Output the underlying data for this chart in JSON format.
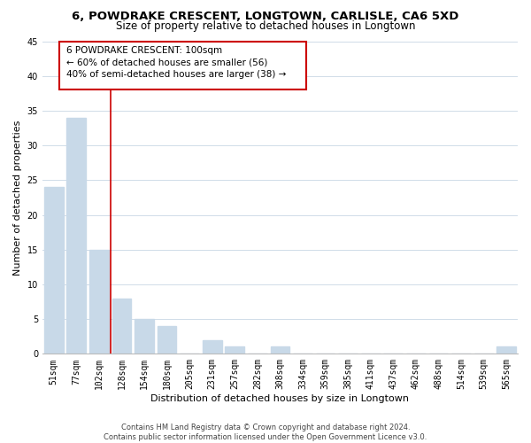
{
  "title": "6, POWDRAKE CRESCENT, LONGTOWN, CARLISLE, CA6 5XD",
  "subtitle": "Size of property relative to detached houses in Longtown",
  "xlabel": "Distribution of detached houses by size in Longtown",
  "ylabel": "Number of detached properties",
  "bar_labels": [
    "51sqm",
    "77sqm",
    "102sqm",
    "128sqm",
    "154sqm",
    "180sqm",
    "205sqm",
    "231sqm",
    "257sqm",
    "282sqm",
    "308sqm",
    "334sqm",
    "359sqm",
    "385sqm",
    "411sqm",
    "437sqm",
    "462sqm",
    "488sqm",
    "514sqm",
    "539sqm",
    "565sqm"
  ],
  "bar_values": [
    24,
    34,
    15,
    8,
    5,
    4,
    0,
    2,
    1,
    0,
    1,
    0,
    0,
    0,
    0,
    0,
    0,
    0,
    0,
    0,
    1
  ],
  "bar_color": "#c8d9e8",
  "vline_color": "#cc0000",
  "vline_index": 2,
  "annotation_text_line1": "6 POWDRAKE CRESCENT: 100sqm",
  "annotation_text_line2": "← 60% of detached houses are smaller (56)",
  "annotation_text_line3": "40% of semi-detached houses are larger (38) →",
  "ylim": [
    0,
    45
  ],
  "yticks": [
    0,
    5,
    10,
    15,
    20,
    25,
    30,
    35,
    40,
    45
  ],
  "title_fontsize": 9.5,
  "subtitle_fontsize": 8.5,
  "axis_label_fontsize": 8,
  "tick_fontsize": 7,
  "annotation_fontsize": 7.5,
  "footer_fontsize": 6,
  "footer_text": "Contains HM Land Registry data © Crown copyright and database right 2024.\nContains public sector information licensed under the Open Government Licence v3.0.",
  "background_color": "#ffffff",
  "grid_color": "#d0dce8"
}
